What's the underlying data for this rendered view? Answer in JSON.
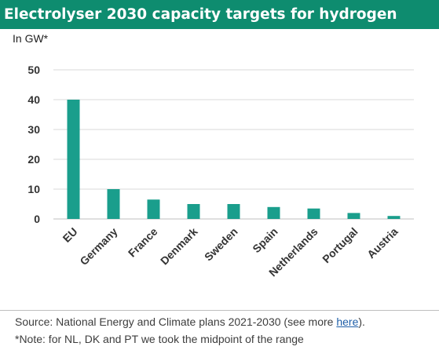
{
  "chart_data": {
    "type": "bar",
    "title": "Electrolyser 2030 capacity targets for hydrogen",
    "ylabel": "In GW*",
    "xlabel": "",
    "categories": [
      "EU",
      "Germany",
      "France",
      "Denmark",
      "Sweden",
      "Spain",
      "Netherlands",
      "Portugal",
      "Austria"
    ],
    "values": [
      40,
      10,
      6.5,
      5,
      5,
      4,
      3.5,
      2,
      1
    ],
    "ylim": [
      0,
      50
    ],
    "yticks": [
      0,
      10,
      20,
      30,
      40,
      50
    ],
    "grid": true,
    "legend": "none",
    "bar_color": "#1a9e8c"
  },
  "footer": {
    "source_prefix": "Source: National Energy and Climate plans 2021-2030 (see more ",
    "source_link": "here",
    "source_suffix": ").",
    "note": "*Note: for NL, DK and PT we took the midpoint of the range"
  },
  "colors": {
    "title_background": "#0e8c6f",
    "bar": "#1a9e8c",
    "grid": "#d9d9d9",
    "link": "#1f5fa8"
  }
}
